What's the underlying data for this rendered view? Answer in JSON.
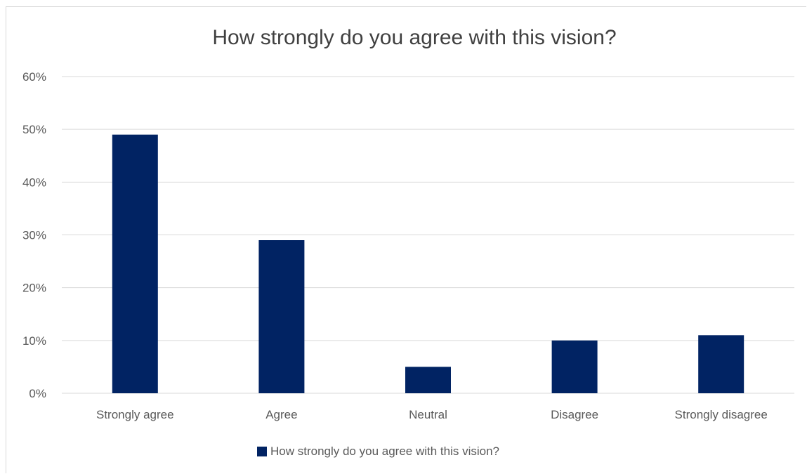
{
  "chart_data": {
    "type": "bar",
    "title": "How strongly do you agree with this vision?",
    "categories": [
      "Strongly agree",
      "Agree",
      "Neutral",
      "Disagree",
      "Strongly disagree"
    ],
    "series": [
      {
        "name": "How strongly do you agree with this vision?",
        "values": [
          0.49,
          0.29,
          0.05,
          0.1,
          0.11
        ]
      }
    ],
    "ylim": [
      0,
      0.6
    ],
    "yticks": [
      0,
      0.1,
      0.2,
      0.3,
      0.4,
      0.5,
      0.6
    ],
    "ytick_labels": [
      "0%",
      "10%",
      "20%",
      "30%",
      "40%",
      "50%",
      "60%"
    ],
    "xlabel": "",
    "ylabel": "",
    "grid": true,
    "legend_position": "bottom",
    "colors": {
      "bar": "#012363",
      "grid": "#d9d9d9",
      "text": "#595959",
      "title": "#404040"
    }
  }
}
